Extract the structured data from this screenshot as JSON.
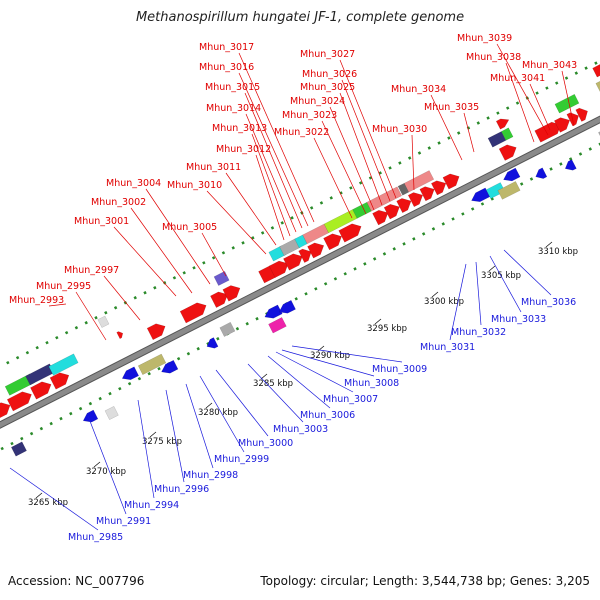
{
  "title": "Methanospirillum hungatei JF-1, complete genome",
  "footer": {
    "accession": "Accession: NC_007796",
    "summary": "Topology: circular; Length: 3,544,738 bp; Genes: 3,205"
  },
  "colors": {
    "forward_gene": "#ee1111",
    "reverse_gene": "#1111dd",
    "backbone": "#8a8a8a",
    "label_top": "#e00000",
    "label_bottom": "#1a1adc",
    "cyan": "#22dddd",
    "green": "#33cc33",
    "lime": "#aaee22",
    "purple": "#6a5acd",
    "khaki": "#bdb76b",
    "pink": "#ee8888",
    "magenta": "#ee22aa",
    "gray": "#aaaaaa",
    "navy": "#333377"
  },
  "kbp_ticks": [
    "3265 kbp",
    "3270 kbp",
    "3275 kbp",
    "3280 kbp",
    "3285 kbp",
    "3290 kbp",
    "3295 kbp",
    "3300 kbp",
    "3305 kbp",
    "3310 kbp"
  ],
  "top_labels": [
    "Mhun_2993",
    "Mhun_2995",
    "Mhun_2997",
    "Mhun_3001",
    "Mhun_3002",
    "Mhun_3004",
    "Mhun_3005",
    "Mhun_3010",
    "Mhun_3011",
    "Mhun_3012",
    "Mhun_3013",
    "Mhun_3014",
    "Mhun_3015",
    "Mhun_3016",
    "Mhun_3017",
    "Mhun_3022",
    "Mhun_3023",
    "Mhun_3024",
    "Mhun_3025",
    "Mhun_3026",
    "Mhun_3027",
    "Mhun_3030",
    "Mhun_3034",
    "Mhun_3035",
    "Mhun_3038",
    "Mhun_3039",
    "Mhun_3041",
    "Mhun_3043"
  ],
  "bottom_labels": [
    "Mhun_2985",
    "Mhun_2991",
    "Mhun_2994",
    "Mhun_2996",
    "Mhun_2998",
    "Mhun_2999",
    "Mhun_3000",
    "Mhun_3003",
    "Mhun_3006",
    "Mhun_3007",
    "Mhun_3008",
    "Mhun_3009",
    "Mhun_3031",
    "Mhun_3032",
    "Mhun_3033",
    "Mhun_3036"
  ]
}
